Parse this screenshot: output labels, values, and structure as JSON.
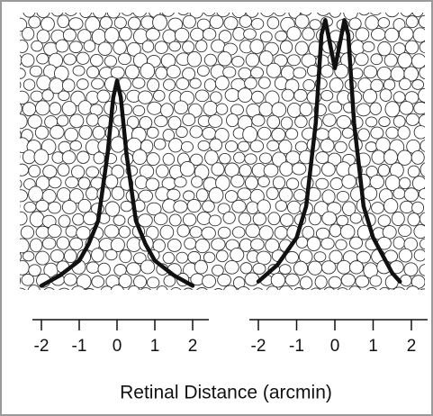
{
  "chart_data": [
    {
      "type": "line",
      "x": [
        -2,
        -1.5,
        -1,
        -0.75,
        -0.5,
        -0.25,
        -0.1,
        0,
        0.1,
        0.25,
        0.5,
        0.75,
        1,
        1.5,
        2
      ],
      "values": [
        0.02,
        0.07,
        0.14,
        0.22,
        0.33,
        0.65,
        0.92,
        1,
        0.92,
        0.65,
        0.33,
        0.22,
        0.14,
        0.07,
        0.02
      ],
      "color": "#111111",
      "xlim": [
        -2,
        2
      ],
      "xticks": [
        -2,
        -1,
        0,
        1,
        2
      ],
      "ylim": [
        0,
        1.3
      ]
    },
    {
      "type": "line",
      "x": [
        -2,
        -1.5,
        -1,
        -0.75,
        -0.5,
        -0.35,
        -0.25,
        -0.1,
        0,
        0.1,
        0.25,
        0.35,
        0.5,
        0.75,
        1,
        1.5,
        1.7
      ],
      "values": [
        0.04,
        0.12,
        0.25,
        0.4,
        0.8,
        1.22,
        1.29,
        1.15,
        1.06,
        1.15,
        1.29,
        1.22,
        0.8,
        0.4,
        0.25,
        0.08,
        0.04
      ],
      "color": "#111111",
      "xlim": [
        -2,
        2
      ],
      "xticks": [
        -2,
        -1,
        0,
        1,
        2
      ],
      "ylim": [
        0,
        1.3
      ]
    }
  ],
  "xlabel": "Retinal Distance (arcmin)"
}
